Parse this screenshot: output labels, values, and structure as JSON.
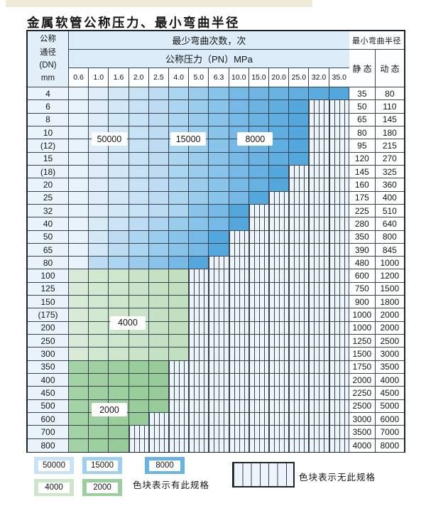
{
  "title": "金属软管公称压力、最小弯曲半径",
  "header": {
    "dn_lines": [
      "公称",
      "通径",
      "(DN)",
      "mm"
    ],
    "bend_times_label": "最少弯曲次数，次",
    "pressure_label": "公称压力（PN）MPa",
    "radius_label": "最小弯曲半径",
    "static_label": "静 态",
    "dynamic_label": "动 态"
  },
  "chart_data": {
    "type": "heatmap",
    "x_label": "公称压力（PN）MPa",
    "x_categories": [
      "0.6",
      "1.0",
      "1.6",
      "2.0",
      "2.5",
      "4.0",
      "5.0",
      "6.3",
      "10.0",
      "15.0",
      "20.0",
      "25.0",
      "32.0",
      "35.0"
    ],
    "y_label": "公称通径 (DN) mm",
    "cycle_levels": [
      "50000",
      "15000",
      "8000",
      "4000",
      "2000"
    ],
    "note": "colored cell = spec exists for that DN/PN, shade = minimum bend cycles; hatched cell = no spec",
    "rows": [
      {
        "dn": "4",
        "static": "35",
        "dynamic": "80",
        "group": "blue",
        "b": [
          4,
          7
        ],
        "last": 13
      },
      {
        "dn": "6",
        "static": "50",
        "dynamic": "110",
        "group": "blue",
        "b": [
          4,
          7
        ],
        "last": 11
      },
      {
        "dn": "8",
        "static": "65",
        "dynamic": "145",
        "group": "blue",
        "b": [
          4,
          7
        ],
        "last": 11
      },
      {
        "dn": "10",
        "static": "80",
        "dynamic": "180",
        "group": "blue",
        "b": [
          4,
          7
        ],
        "last": 11
      },
      {
        "dn": "(12)",
        "static": "95",
        "dynamic": "215",
        "group": "blue",
        "b": [
          4,
          7
        ],
        "last": 11
      },
      {
        "dn": "15",
        "static": "120",
        "dynamic": "270",
        "group": "blue",
        "b": [
          4,
          7
        ],
        "last": 11
      },
      {
        "dn": "(18)",
        "static": "145",
        "dynamic": "325",
        "group": "blue",
        "b": [
          4,
          7
        ],
        "last": 10
      },
      {
        "dn": "20",
        "static": "160",
        "dynamic": "360",
        "group": "blue",
        "b": [
          4,
          7
        ],
        "last": 10
      },
      {
        "dn": "25",
        "static": "175",
        "dynamic": "400",
        "group": "blue",
        "b": [
          4,
          7
        ],
        "last": 9
      },
      {
        "dn": "32",
        "static": "225",
        "dynamic": "510",
        "group": "blue",
        "b": [
          4,
          6
        ],
        "last": 8
      },
      {
        "dn": "40",
        "static": "280",
        "dynamic": "640",
        "group": "blue",
        "b": [
          3,
          6
        ],
        "last": 8
      },
      {
        "dn": "50",
        "static": "350",
        "dynamic": "800",
        "group": "blue",
        "b": [
          2,
          5
        ],
        "last": 7
      },
      {
        "dn": "65",
        "static": "390",
        "dynamic": "845",
        "group": "blue",
        "b": [
          2,
          5
        ],
        "last": 7
      },
      {
        "dn": "80",
        "static": "480",
        "dynamic": "1000",
        "group": "blue",
        "b": [
          1,
          4
        ],
        "last": 6
      },
      {
        "dn": "100",
        "static": "600",
        "dynamic": "1200",
        "group": "4000",
        "last": 5
      },
      {
        "dn": "125",
        "static": "750",
        "dynamic": "1500",
        "group": "4000",
        "last": 5
      },
      {
        "dn": "150",
        "static": "900",
        "dynamic": "1800",
        "group": "4000",
        "last": 5
      },
      {
        "dn": "(175)",
        "static": "1000",
        "dynamic": "2000",
        "group": "4000",
        "last": 5
      },
      {
        "dn": "200",
        "static": "1000",
        "dynamic": "2000",
        "group": "4000",
        "last": 5
      },
      {
        "dn": "250",
        "static": "1250",
        "dynamic": "2500",
        "group": "4000",
        "last": 5
      },
      {
        "dn": "300",
        "static": "1500",
        "dynamic": "3000",
        "group": "4000",
        "last": 5
      },
      {
        "dn": "350",
        "static": "1750",
        "dynamic": "3500",
        "group": "2000",
        "last": 4
      },
      {
        "dn": "400",
        "static": "2000",
        "dynamic": "4000",
        "group": "2000",
        "last": 4
      },
      {
        "dn": "450",
        "static": "2250",
        "dynamic": "4500",
        "group": "2000",
        "last": 4
      },
      {
        "dn": "500",
        "static": "2500",
        "dynamic": "5000",
        "group": "2000",
        "last": 4
      },
      {
        "dn": "600",
        "static": "3000",
        "dynamic": "6000",
        "group": "2000",
        "last": 3
      },
      {
        "dn": "700",
        "static": "3500",
        "dynamic": "7000",
        "group": "2000",
        "last": 2
      },
      {
        "dn": "800",
        "static": "4000",
        "dynamic": "8000",
        "group": "2000",
        "last": 2
      }
    ],
    "region_labels": [
      {
        "text": "50000",
        "row": 4.0,
        "col": 2.02
      },
      {
        "text": "15000",
        "row": 4.0,
        "col": 5.96
      },
      {
        "text": "8000",
        "row": 4.0,
        "col": 9.3
      },
      {
        "text": "4000",
        "row": 18.1,
        "col": 2.94
      },
      {
        "text": "2000",
        "row": 24.8,
        "col": 2.02
      }
    ]
  },
  "colors": {
    "band_gradients": {
      "50000": [
        "#e9f3fb",
        "#bddcf3"
      ],
      "15000": [
        "#abd5f0",
        "#88c3ea"
      ],
      "8000": [
        "#77b9e6",
        "#54a7dd"
      ],
      "4000": [
        "#d7ebd6",
        "#bfdfbe"
      ],
      "2000": [
        "#a3d2a5",
        "#97cb99"
      ]
    },
    "legend_swatches": {
      "50000": "#c9e3f6",
      "15000": "#9fd0ef",
      "8000": "#68b3e2",
      "4000": "#cce6cb",
      "2000": "#9ccd9e"
    },
    "grid": "#39434b",
    "header_bg": "#dcecf8",
    "hatch_bg": "#eef4fb"
  },
  "legend": {
    "swatches": [
      "50000",
      "15000",
      "8000",
      "4000",
      "2000"
    ],
    "has_spec_note": "色块表示有此规格",
    "no_spec_note": "色块表示无此规格"
  }
}
